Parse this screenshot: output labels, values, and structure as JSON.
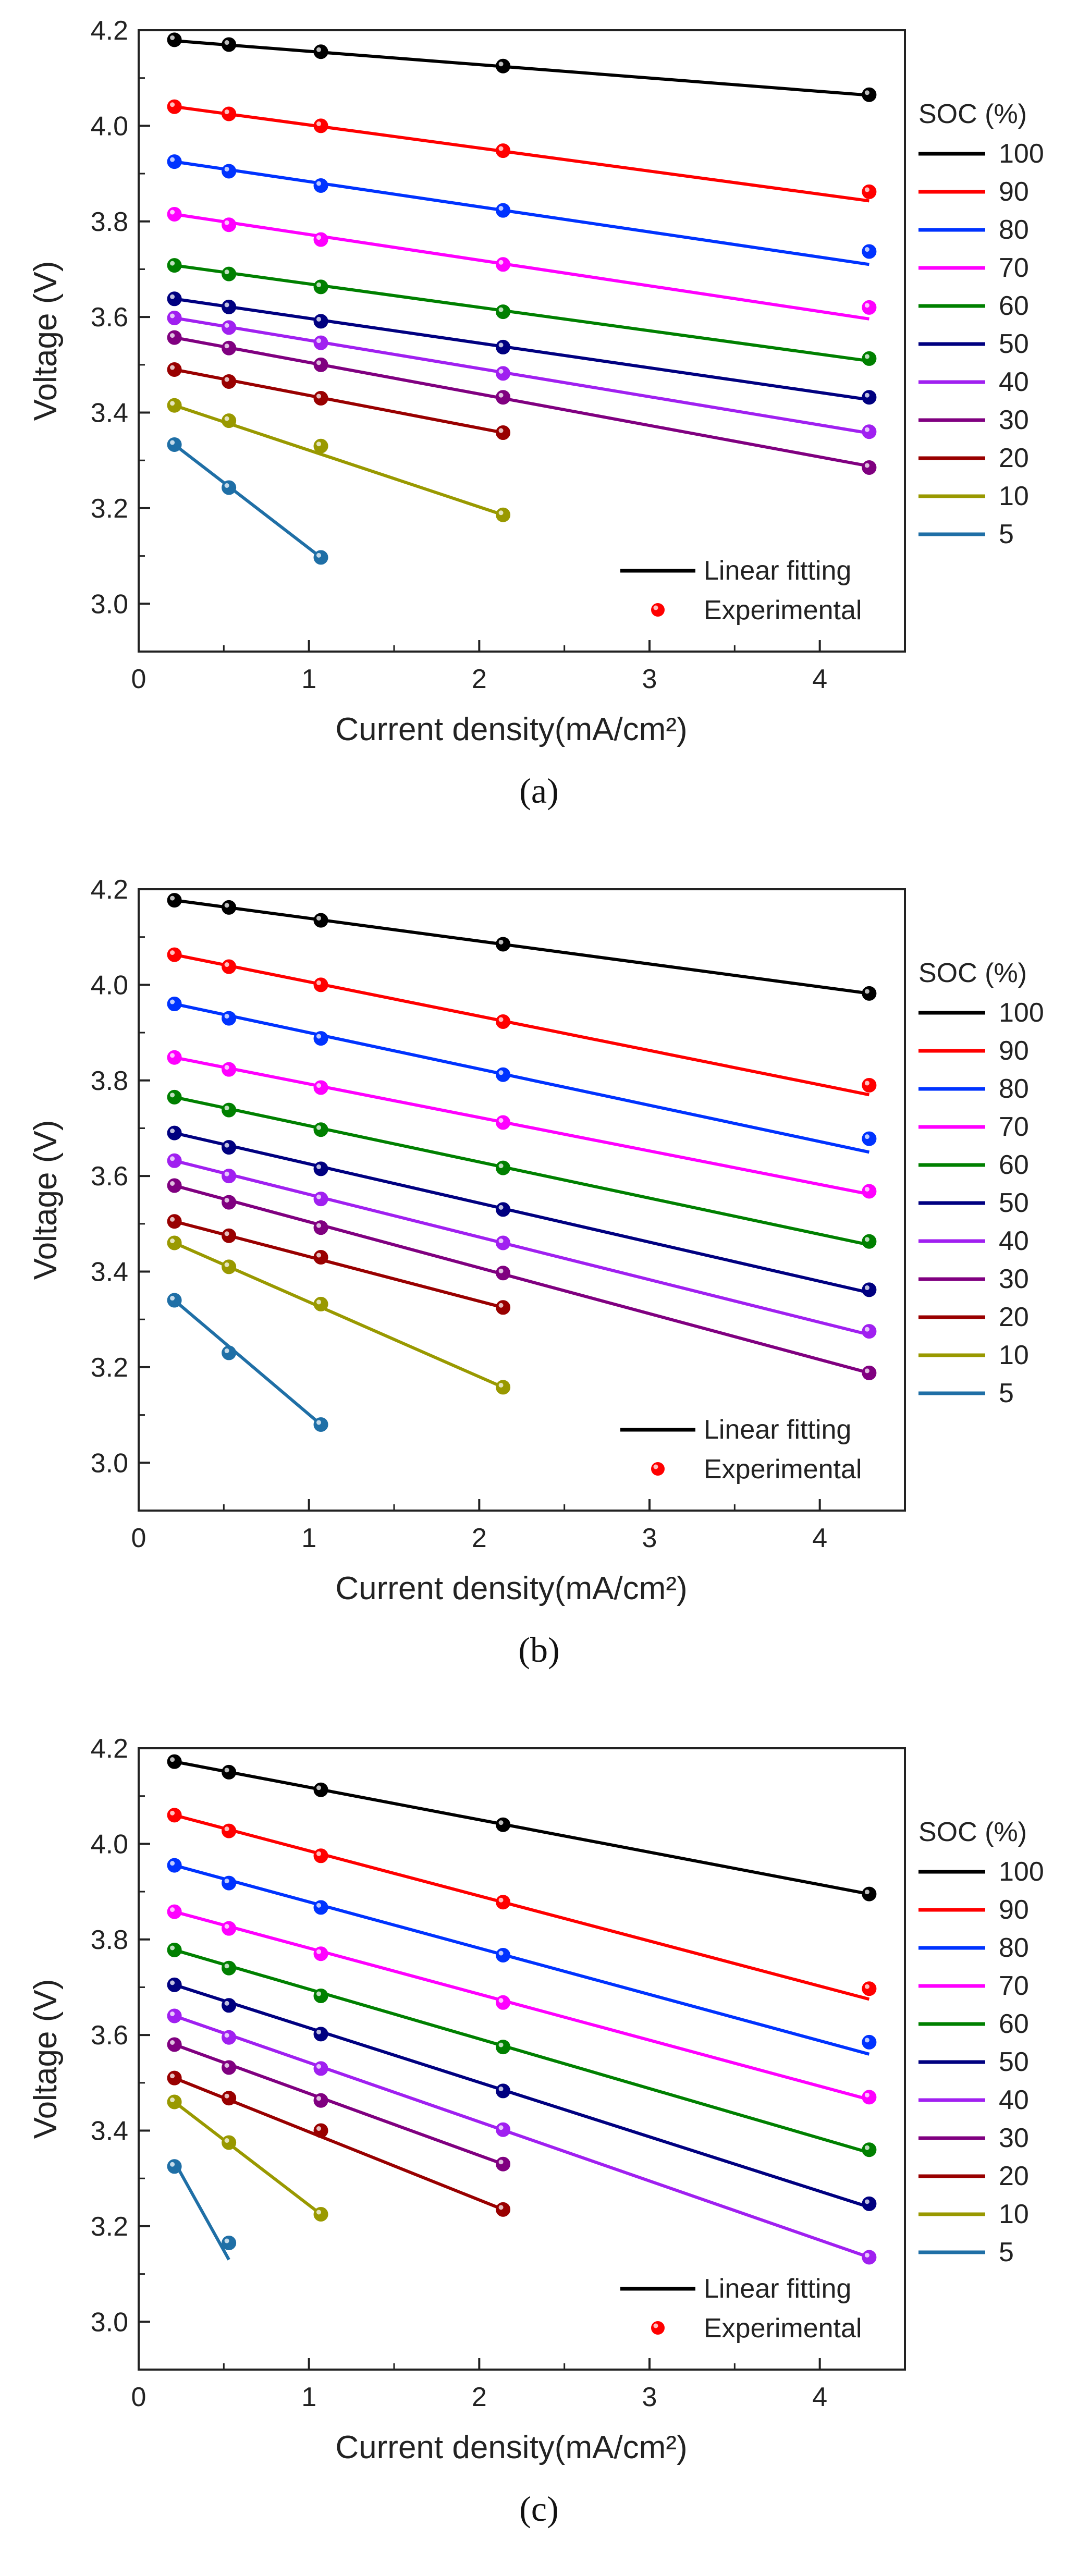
{
  "chart_data": [
    {
      "panel": "a",
      "caption": "(a)",
      "type": "line",
      "xlabel": "Current density(mA/cm²)",
      "ylabel": "Voltage (V)",
      "xlim": [
        0,
        4.5
      ],
      "ylim": [
        2.9,
        4.2
      ],
      "xticks": [
        "0",
        "1",
        "2",
        "3",
        "4"
      ],
      "yticks": [
        "3.0",
        "3.2",
        "3.4",
        "3.6",
        "3.8",
        "4.0",
        "4.2"
      ],
      "legend_title": "SOC (%)",
      "fit_legend": {
        "line": "Linear fitting",
        "marker": "Experimental"
      },
      "series": [
        {
          "name": "100",
          "color": "#000000",
          "x": [
            0.21,
            0.53,
            1.07,
            2.14,
            4.29
          ],
          "values": [
            4.18,
            4.17,
            4.155,
            4.125,
            4.065
          ],
          "fit": [
            4.178,
            4.064
          ]
        },
        {
          "name": "90",
          "color": "#ff0000",
          "x": [
            0.21,
            0.53,
            1.07,
            2.14,
            4.29
          ],
          "values": [
            4.04,
            4.025,
            4.0,
            3.948,
            3.862
          ],
          "fit": [
            4.04,
            3.843
          ]
        },
        {
          "name": "80",
          "color": "#0033ff",
          "x": [
            0.21,
            0.53,
            1.07,
            2.14,
            4.29
          ],
          "values": [
            3.925,
            3.905,
            3.875,
            3.823,
            3.737
          ],
          "fit": [
            3.925,
            3.71
          ]
        },
        {
          "name": "70",
          "color": "#ff00ff",
          "x": [
            0.21,
            0.53,
            1.07,
            2.14,
            4.29
          ],
          "values": [
            3.815,
            3.793,
            3.762,
            3.71,
            3.62
          ],
          "fit": [
            3.815,
            3.596
          ]
        },
        {
          "name": "60",
          "color": "#008000",
          "x": [
            0.21,
            0.53,
            1.07,
            2.14,
            4.29
          ],
          "values": [
            3.708,
            3.69,
            3.663,
            3.611,
            3.513
          ],
          "fit": [
            3.708,
            3.508
          ]
        },
        {
          "name": "50",
          "color": "#000080",
          "x": [
            0.21,
            0.53,
            1.07,
            2.14,
            4.29
          ],
          "values": [
            3.638,
            3.621,
            3.591,
            3.537,
            3.432
          ],
          "fit": [
            3.638,
            3.427
          ]
        },
        {
          "name": "40",
          "color": "#a020f0",
          "x": [
            0.21,
            0.53,
            1.07,
            2.14,
            4.29
          ],
          "values": [
            3.598,
            3.578,
            3.546,
            3.482,
            3.36
          ],
          "fit": [
            3.598,
            3.357
          ]
        },
        {
          "name": "30",
          "color": "#800080",
          "x": [
            0.21,
            0.53,
            1.07,
            2.14,
            4.29
          ],
          "values": [
            3.557,
            3.535,
            3.5,
            3.432,
            3.285
          ],
          "fit": [
            3.557,
            3.288
          ]
        },
        {
          "name": "20",
          "color": "#990000",
          "x": [
            0.21,
            0.53,
            1.07,
            2.14
          ],
          "values": [
            3.49,
            3.465,
            3.43,
            3.358
          ],
          "fit": [
            3.49,
            3.358
          ]
        },
        {
          "name": "10",
          "color": "#999900",
          "x": [
            0.21,
            0.53,
            1.07,
            2.14
          ],
          "values": [
            3.415,
            3.383,
            3.33,
            3.186
          ],
          "fit": [
            3.415,
            3.186
          ]
        },
        {
          "name": "5",
          "color": "#1f6fa6",
          "x": [
            0.21,
            0.53,
            1.07
          ],
          "values": [
            3.333,
            3.243,
            3.097
          ],
          "fit": [
            3.333,
            3.097
          ]
        }
      ]
    },
    {
      "panel": "b",
      "caption": "(b)",
      "type": "line",
      "xlabel": "Current density(mA/cm²)",
      "ylabel": "Voltage (V)",
      "xlim": [
        0,
        4.5
      ],
      "ylim": [
        2.9,
        4.2
      ],
      "xticks": [
        "0",
        "1",
        "2",
        "3",
        "4"
      ],
      "yticks": [
        "3.0",
        "3.2",
        "3.4",
        "3.6",
        "3.8",
        "4.0",
        "4.2"
      ],
      "legend_title": "SOC (%)",
      "fit_legend": {
        "line": "Linear fitting",
        "marker": "Experimental"
      },
      "series": [
        {
          "name": "100",
          "color": "#000000",
          "x": [
            0.21,
            0.53,
            1.07,
            2.14,
            4.29
          ],
          "values": [
            4.177,
            4.162,
            4.135,
            4.085,
            3.982
          ],
          "fit": [
            4.177,
            3.982
          ]
        },
        {
          "name": "90",
          "color": "#ff0000",
          "x": [
            0.21,
            0.53,
            1.07,
            2.14,
            4.29
          ],
          "values": [
            4.063,
            4.038,
            4.0,
            3.923,
            3.79
          ],
          "fit": [
            4.063,
            3.77
          ]
        },
        {
          "name": "80",
          "color": "#0033ff",
          "x": [
            0.21,
            0.53,
            1.07,
            2.14,
            4.29
          ],
          "values": [
            3.96,
            3.93,
            3.888,
            3.812,
            3.678
          ],
          "fit": [
            3.96,
            3.65
          ]
        },
        {
          "name": "70",
          "color": "#ff00ff",
          "x": [
            0.21,
            0.53,
            1.07,
            2.14,
            4.29
          ],
          "values": [
            3.848,
            3.823,
            3.785,
            3.712,
            3.568
          ],
          "fit": [
            3.848,
            3.562
          ]
        },
        {
          "name": "60",
          "color": "#008000",
          "x": [
            0.21,
            0.53,
            1.07,
            2.14,
            4.29
          ],
          "values": [
            3.765,
            3.738,
            3.697,
            3.617,
            3.463
          ],
          "fit": [
            3.765,
            3.456
          ]
        },
        {
          "name": "50",
          "color": "#000080",
          "x": [
            0.21,
            0.53,
            1.07,
            2.14,
            4.29
          ],
          "values": [
            3.69,
            3.66,
            3.615,
            3.53,
            3.362
          ],
          "fit": [
            3.69,
            3.356
          ]
        },
        {
          "name": "40",
          "color": "#a020f0",
          "x": [
            0.21,
            0.53,
            1.07,
            2.14,
            4.29
          ],
          "values": [
            3.632,
            3.6,
            3.552,
            3.46,
            3.275
          ],
          "fit": [
            3.632,
            3.268
          ]
        },
        {
          "name": "30",
          "color": "#800080",
          "x": [
            0.21,
            0.53,
            1.07,
            2.14,
            4.29
          ],
          "values": [
            3.58,
            3.545,
            3.492,
            3.397,
            3.188
          ],
          "fit": [
            3.58,
            3.188
          ]
        },
        {
          "name": "20",
          "color": "#990000",
          "x": [
            0.21,
            0.53,
            1.07,
            2.14
          ],
          "values": [
            3.505,
            3.475,
            3.43,
            3.325
          ],
          "fit": [
            3.505,
            3.325
          ]
        },
        {
          "name": "10",
          "color": "#999900",
          "x": [
            0.21,
            0.53,
            1.07,
            2.14
          ],
          "values": [
            3.46,
            3.41,
            3.332,
            3.158
          ],
          "fit": [
            3.46,
            3.158
          ]
        },
        {
          "name": "5",
          "color": "#1f6fa6",
          "x": [
            0.21,
            0.53,
            1.07
          ],
          "values": [
            3.34,
            3.23,
            3.08
          ],
          "fit": [
            3.34,
            3.08
          ]
        }
      ]
    },
    {
      "panel": "c",
      "caption": "(c)",
      "type": "line",
      "xlabel": "Current density(mA/cm²)",
      "ylabel": "Voltage (V)",
      "xlim": [
        0,
        4.5
      ],
      "ylim": [
        2.9,
        4.2
      ],
      "xticks": [
        "0",
        "1",
        "2",
        "3",
        "4"
      ],
      "yticks": [
        "3.0",
        "3.2",
        "3.4",
        "3.6",
        "3.8",
        "4.0",
        "4.2"
      ],
      "legend_title": "SOC (%)",
      "fit_legend": {
        "line": "Linear fitting",
        "marker": "Experimental"
      },
      "series": [
        {
          "name": "100",
          "color": "#000000",
          "x": [
            0.21,
            0.53,
            1.07,
            2.14,
            4.29
          ],
          "values": [
            4.172,
            4.15,
            4.113,
            4.04,
            3.895
          ],
          "fit": [
            4.172,
            3.895
          ]
        },
        {
          "name": "90",
          "color": "#ff0000",
          "x": [
            0.21,
            0.53,
            1.07,
            2.14,
            4.29
          ],
          "values": [
            4.06,
            4.027,
            3.975,
            3.878,
            3.697
          ],
          "fit": [
            4.06,
            3.675
          ]
        },
        {
          "name": "80",
          "color": "#0033ff",
          "x": [
            0.21,
            0.53,
            1.07,
            2.14,
            4.29
          ],
          "values": [
            3.955,
            3.918,
            3.867,
            3.767,
            3.585
          ],
          "fit": [
            3.955,
            3.56
          ]
        },
        {
          "name": "70",
          "color": "#ff00ff",
          "x": [
            0.21,
            0.53,
            1.07,
            2.14,
            4.29
          ],
          "values": [
            3.858,
            3.823,
            3.77,
            3.668,
            3.47
          ],
          "fit": [
            3.858,
            3.465
          ]
        },
        {
          "name": "60",
          "color": "#008000",
          "x": [
            0.21,
            0.53,
            1.07,
            2.14,
            4.29
          ],
          "values": [
            3.778,
            3.74,
            3.682,
            3.575,
            3.36
          ],
          "fit": [
            3.778,
            3.354
          ]
        },
        {
          "name": "50",
          "color": "#000080",
          "x": [
            0.21,
            0.53,
            1.07,
            2.14,
            4.29
          ],
          "values": [
            3.705,
            3.662,
            3.602,
            3.483,
            3.247
          ],
          "fit": [
            3.705,
            3.24
          ]
        },
        {
          "name": "40",
          "color": "#a020f0",
          "x": [
            0.21,
            0.53,
            1.07,
            2.14,
            4.29
          ],
          "values": [
            3.64,
            3.595,
            3.53,
            3.402,
            3.135
          ],
          "fit": [
            3.64,
            3.135
          ]
        },
        {
          "name": "30",
          "color": "#800080",
          "x": [
            0.21,
            0.53,
            1.07,
            2.14
          ],
          "values": [
            3.58,
            3.532,
            3.463,
            3.33
          ],
          "fit": [
            3.58,
            3.33
          ]
        },
        {
          "name": "20",
          "color": "#990000",
          "x": [
            0.21,
            0.53,
            1.07,
            2.14
          ],
          "values": [
            3.51,
            3.468,
            3.4,
            3.235
          ],
          "fit": [
            3.51,
            3.235
          ]
        },
        {
          "name": "10",
          "color": "#999900",
          "x": [
            0.21,
            0.53,
            1.07
          ],
          "values": [
            3.46,
            3.375,
            3.225
          ],
          "fit": [
            3.46,
            3.225
          ]
        },
        {
          "name": "5",
          "color": "#1f6fa6",
          "x": [
            0.21,
            0.53
          ],
          "values": [
            3.325,
            3.165
          ],
          "fit": [
            3.335,
            3.13
          ]
        }
      ]
    }
  ]
}
